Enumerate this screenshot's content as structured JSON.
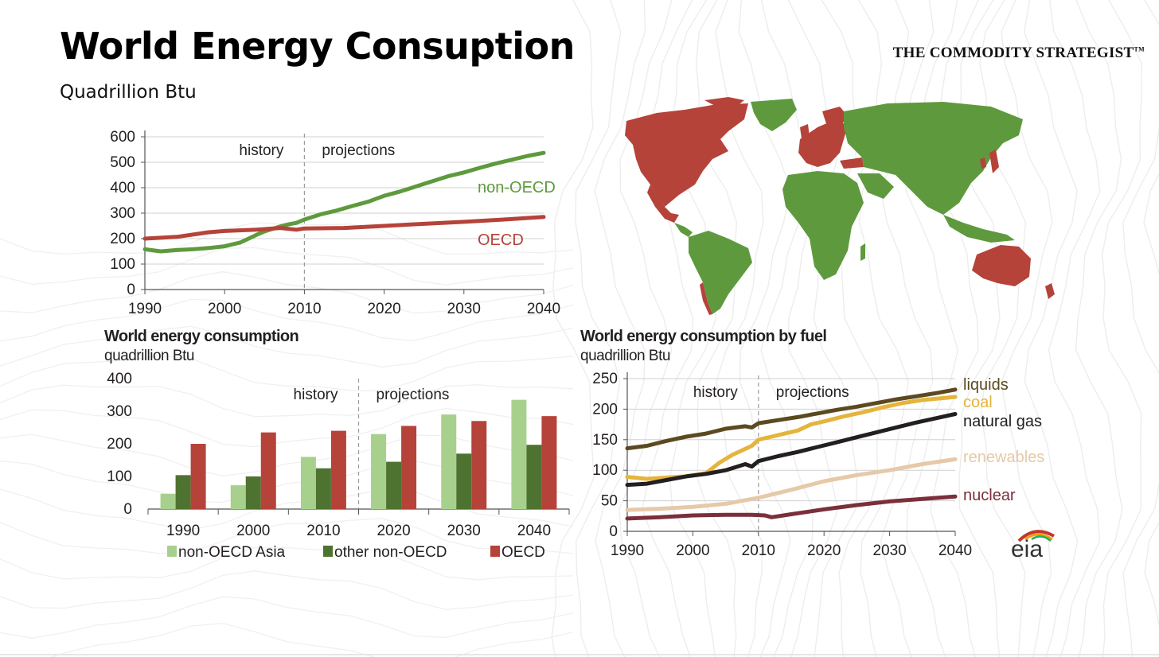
{
  "header": {
    "title": "World Energy Consuption",
    "subtitle": "Quadrillion Btu",
    "brand": "THE COMMODITY STRATEGIST",
    "brand_tm": "TM"
  },
  "logo": {
    "text": "eia"
  },
  "colors": {
    "oecd": "#b5433a",
    "non_oecd": "#5e9a3d",
    "non_oecd_asia": "#a8d08d",
    "other_non_oecd": "#4e7330",
    "liquids": "#5b4a20",
    "coal": "#e4b43c",
    "natural_gas": "#231f20",
    "renewables": "#e6c9a8",
    "nuclear": "#7b2f3b",
    "grid": "#d0d0d0",
    "map_oecd": "#b5433a",
    "map_non_oecd": "#5e9a3d"
  },
  "chart_data": [
    {
      "id": "top",
      "type": "line",
      "title": "",
      "xlabel": "",
      "ylabel": "",
      "xlim": [
        1990,
        2040
      ],
      "ylim": [
        0,
        600
      ],
      "yticks": [
        0,
        100,
        200,
        300,
        400,
        500,
        600
      ],
      "xticks": [
        1990,
        2000,
        2010,
        2020,
        2030,
        2040
      ],
      "history_label": "history",
      "projections_label": "projections",
      "divider_x": 2010,
      "series": [
        {
          "name": "non-OECD",
          "color_key": "non_oecd",
          "x": [
            1990,
            1992,
            1994,
            1996,
            1998,
            2000,
            2002,
            2003,
            2004,
            2005,
            2006,
            2007,
            2008,
            2009,
            2010,
            2012,
            2014,
            2016,
            2018,
            2020,
            2022,
            2024,
            2026,
            2028,
            2030,
            2032,
            2034,
            2036,
            2038,
            2040
          ],
          "values": [
            158,
            150,
            155,
            158,
            163,
            170,
            185,
            200,
            215,
            228,
            238,
            248,
            256,
            262,
            275,
            295,
            310,
            328,
            345,
            368,
            385,
            405,
            425,
            445,
            460,
            478,
            495,
            510,
            525,
            537
          ]
        },
        {
          "name": "OECD",
          "color_key": "oecd",
          "x": [
            1990,
            1994,
            1998,
            2000,
            2004,
            2007,
            2009,
            2010,
            2015,
            2020,
            2025,
            2030,
            2035,
            2040
          ],
          "values": [
            200,
            207,
            225,
            230,
            235,
            242,
            235,
            240,
            242,
            250,
            258,
            266,
            275,
            285
          ]
        }
      ]
    },
    {
      "id": "bottom-left",
      "type": "bar",
      "title": "World energy consumption",
      "unit": "quadrillion Btu",
      "xlabel": "",
      "ylabel": "",
      "ylim": [
        0,
        400
      ],
      "yticks": [
        0,
        100,
        200,
        300,
        400
      ],
      "history_label": "history",
      "projections_label": "projections",
      "categories": [
        "1990",
        "2000",
        "2010",
        "2020",
        "2030",
        "2040"
      ],
      "series": [
        {
          "name": "non-OECD Asia",
          "color_key": "non_oecd_asia",
          "values": [
            47,
            73,
            160,
            230,
            290,
            335
          ]
        },
        {
          "name": "other non-OECD",
          "color_key": "other_non_oecd",
          "values": [
            104,
            100,
            125,
            145,
            170,
            197
          ]
        },
        {
          "name": "OECD",
          "color_key": "oecd",
          "values": [
            200,
            235,
            240,
            255,
            270,
            285
          ]
        }
      ],
      "legend_position": "bottom"
    },
    {
      "id": "bottom-right",
      "type": "line",
      "title": "World energy consumption by fuel",
      "unit": "quadrillion Btu",
      "xlabel": "",
      "ylabel": "",
      "xlim": [
        1990,
        2040
      ],
      "ylim": [
        0,
        250
      ],
      "yticks": [
        0,
        50,
        100,
        150,
        200,
        250
      ],
      "xticks": [
        1990,
        2000,
        2010,
        2020,
        2030,
        2040
      ],
      "history_label": "history",
      "projections_label": "projections",
      "divider_x": 2010,
      "series": [
        {
          "name": "liquids",
          "color_key": "liquids",
          "x": [
            1990,
            1993,
            1996,
            1999,
            2002,
            2005,
            2008,
            2009,
            2010,
            2013,
            2016,
            2019,
            2022,
            2025,
            2028,
            2031,
            2034,
            2037,
            2040
          ],
          "values": [
            136,
            140,
            148,
            155,
            160,
            168,
            172,
            170,
            177,
            182,
            187,
            193,
            199,
            204,
            210,
            216,
            221,
            226,
            232
          ]
        },
        {
          "name": "coal",
          "color_key": "coal",
          "x": [
            1990,
            1993,
            1996,
            1999,
            2002,
            2004,
            2006,
            2008,
            2009,
            2010,
            2012,
            2014,
            2016,
            2018,
            2020,
            2023,
            2026,
            2029,
            2032,
            2035,
            2038,
            2040
          ],
          "values": [
            89,
            86,
            88,
            90,
            95,
            112,
            125,
            135,
            140,
            150,
            155,
            160,
            165,
            175,
            180,
            188,
            195,
            203,
            210,
            215,
            218,
            220
          ]
        },
        {
          "name": "natural gas",
          "color_key": "natural_gas",
          "x": [
            1990,
            1993,
            1996,
            1999,
            2002,
            2005,
            2008,
            2009,
            2010,
            2013,
            2016,
            2019,
            2022,
            2025,
            2028,
            2031,
            2034,
            2037,
            2040
          ],
          "values": [
            76,
            78,
            84,
            90,
            94,
            100,
            110,
            106,
            115,
            123,
            130,
            138,
            146,
            154,
            162,
            170,
            178,
            185,
            192
          ]
        },
        {
          "name": "renewables",
          "color_key": "renewables",
          "x": [
            1990,
            1995,
            2000,
            2005,
            2010,
            2015,
            2020,
            2025,
            2030,
            2035,
            2040
          ],
          "values": [
            35,
            37,
            40,
            45,
            55,
            68,
            82,
            92,
            100,
            110,
            118
          ]
        },
        {
          "name": "nuclear",
          "color_key": "nuclear",
          "x": [
            1990,
            1995,
            2000,
            2005,
            2009,
            2011,
            2012,
            2015,
            2020,
            2025,
            2030,
            2035,
            2040
          ],
          "values": [
            21,
            23,
            26,
            27,
            27,
            26,
            23,
            28,
            36,
            43,
            49,
            53,
            57
          ]
        }
      ]
    }
  ]
}
